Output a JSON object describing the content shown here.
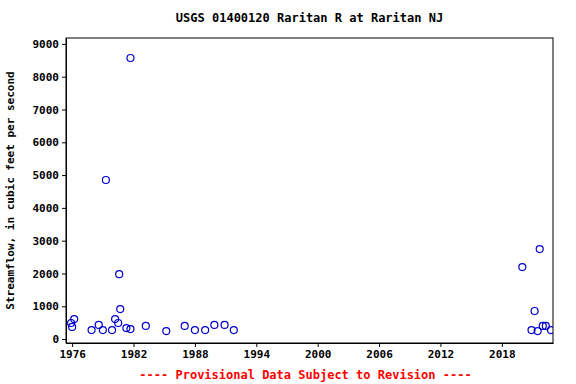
{
  "chart_data": {
    "type": "scatter",
    "title": "USGS 01400120 Raritan R at Raritan NJ",
    "y_label": "Streamflow, in cubic feet per second",
    "note": "---- Provisional Data Subject to Revision ----",
    "x": [
      1975.9,
      1976.0,
      1976.2,
      1977.9,
      1978.6,
      1979.0,
      1979.3,
      1979.9,
      1980.2,
      1980.5,
      1980.6,
      1980.7,
      1981.3,
      1981.7,
      1981.7,
      1983.2,
      1985.2,
      1987.0,
      1988.0,
      1989.0,
      1989.9,
      1990.9,
      1991.8,
      2020.0,
      2020.9,
      2021.2,
      2021.5,
      2021.7,
      2022.0,
      2022.3,
      2022.8
    ],
    "values": [
      490,
      370,
      610,
      275,
      430,
      275,
      4850,
      275,
      610,
      490,
      1980,
      915,
      335,
      305,
      8570,
      400,
      245,
      400,
      275,
      275,
      430,
      430,
      275,
      2195,
      275,
      855,
      245,
      2745,
      400,
      400,
      275
    ],
    "color": "#0000cc",
    "marker": "circle-open",
    "grid": false,
    "xlim": [
      1975.4,
      2023.0
    ],
    "ylim": [
      -120,
      9180
    ],
    "xticks": [
      1976,
      1982,
      1988,
      1994,
      2000,
      2006,
      2012,
      2018
    ],
    "yticks": [
      0,
      1000,
      2000,
      3000,
      4000,
      5000,
      6000,
      7000,
      8000,
      9000
    ]
  }
}
